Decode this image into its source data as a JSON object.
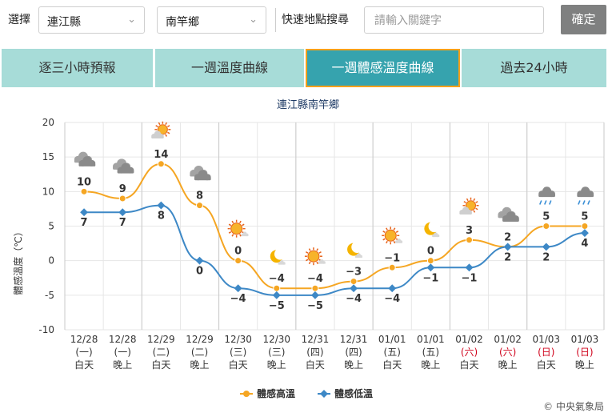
{
  "topbar": {
    "select_label": "選擇",
    "county": "連江縣",
    "township": "南竿鄉",
    "quick_search_label": "快速地點搜尋",
    "search_placeholder": "請輸入關鍵字",
    "confirm_button": "確定"
  },
  "tabs": [
    {
      "label": "逐三小時預報",
      "active": false
    },
    {
      "label": "一週溫度曲線",
      "active": false
    },
    {
      "label": "一週體感溫度曲線",
      "active": true
    },
    {
      "label": "過去24小時",
      "active": false
    }
  ],
  "footer": {
    "copyright": "© 中央氣象局"
  },
  "colors": {
    "high": "#f5a623",
    "low": "#3d88c6",
    "weekend": "#d0021b",
    "tab": "#a7dcd8",
    "tab_active": "#36a3ae",
    "tab_active_border": "#f7a11a"
  },
  "chart_data": {
    "type": "line",
    "title": "連江縣南竿鄉",
    "ylabel": "體感溫度（℃）",
    "ylim": [
      -10,
      20
    ],
    "yticks": [
      -10,
      -5,
      0,
      5,
      10,
      15,
      20
    ],
    "grid": true,
    "legend_position": "bottom-center",
    "categories": [
      {
        "date": "12/28",
        "weekday": "(一)",
        "period": "白天",
        "weekend": false,
        "icon": "cloudy-icon"
      },
      {
        "date": "12/28",
        "weekday": "(一)",
        "period": "晚上",
        "weekend": false,
        "icon": "cloudy-night-icon"
      },
      {
        "date": "12/29",
        "weekday": "(二)",
        "period": "白天",
        "weekend": false,
        "icon": "sun-cloud-icon"
      },
      {
        "date": "12/29",
        "weekday": "(二)",
        "period": "晚上",
        "weekend": false,
        "icon": "cloudy-night-icon"
      },
      {
        "date": "12/30",
        "weekday": "(三)",
        "period": "白天",
        "weekend": false,
        "icon": "sun-icon"
      },
      {
        "date": "12/30",
        "weekday": "(三)",
        "period": "晚上",
        "weekend": false,
        "icon": "moon-cloud-icon"
      },
      {
        "date": "12/31",
        "weekday": "(四)",
        "period": "白天",
        "weekend": false,
        "icon": "sun-icon"
      },
      {
        "date": "12/31",
        "weekday": "(四)",
        "period": "晚上",
        "weekend": false,
        "icon": "moon-cloud-icon"
      },
      {
        "date": "01/01",
        "weekday": "(五)",
        "period": "白天",
        "weekend": false,
        "icon": "sun-icon"
      },
      {
        "date": "01/01",
        "weekday": "(五)",
        "period": "晚上",
        "weekend": false,
        "icon": "moon-cloud-icon"
      },
      {
        "date": "01/02",
        "weekday": "(六)",
        "period": "白天",
        "weekend": true,
        "icon": "sun-cloud-icon"
      },
      {
        "date": "01/02",
        "weekday": "(六)",
        "period": "晚上",
        "weekend": true,
        "icon": "cloudy-night-icon"
      },
      {
        "date": "01/03",
        "weekday": "(日)",
        "period": "白天",
        "weekend": true,
        "icon": "rain-icon"
      },
      {
        "date": "01/03",
        "weekday": "(日)",
        "period": "晚上",
        "weekend": true,
        "icon": "rain-icon"
      }
    ],
    "series": [
      {
        "name": "體感高溫",
        "color": "#f5a623",
        "values": [
          10,
          9,
          14,
          8,
          0,
          -4,
          -4,
          -3,
          -1,
          0,
          3,
          2,
          5,
          5
        ]
      },
      {
        "name": "體感低溫",
        "color": "#3d88c6",
        "values": [
          7,
          7,
          8,
          0,
          -4,
          -5,
          -5,
          -4,
          -4,
          -1,
          -1,
          2,
          2,
          4
        ]
      }
    ]
  }
}
